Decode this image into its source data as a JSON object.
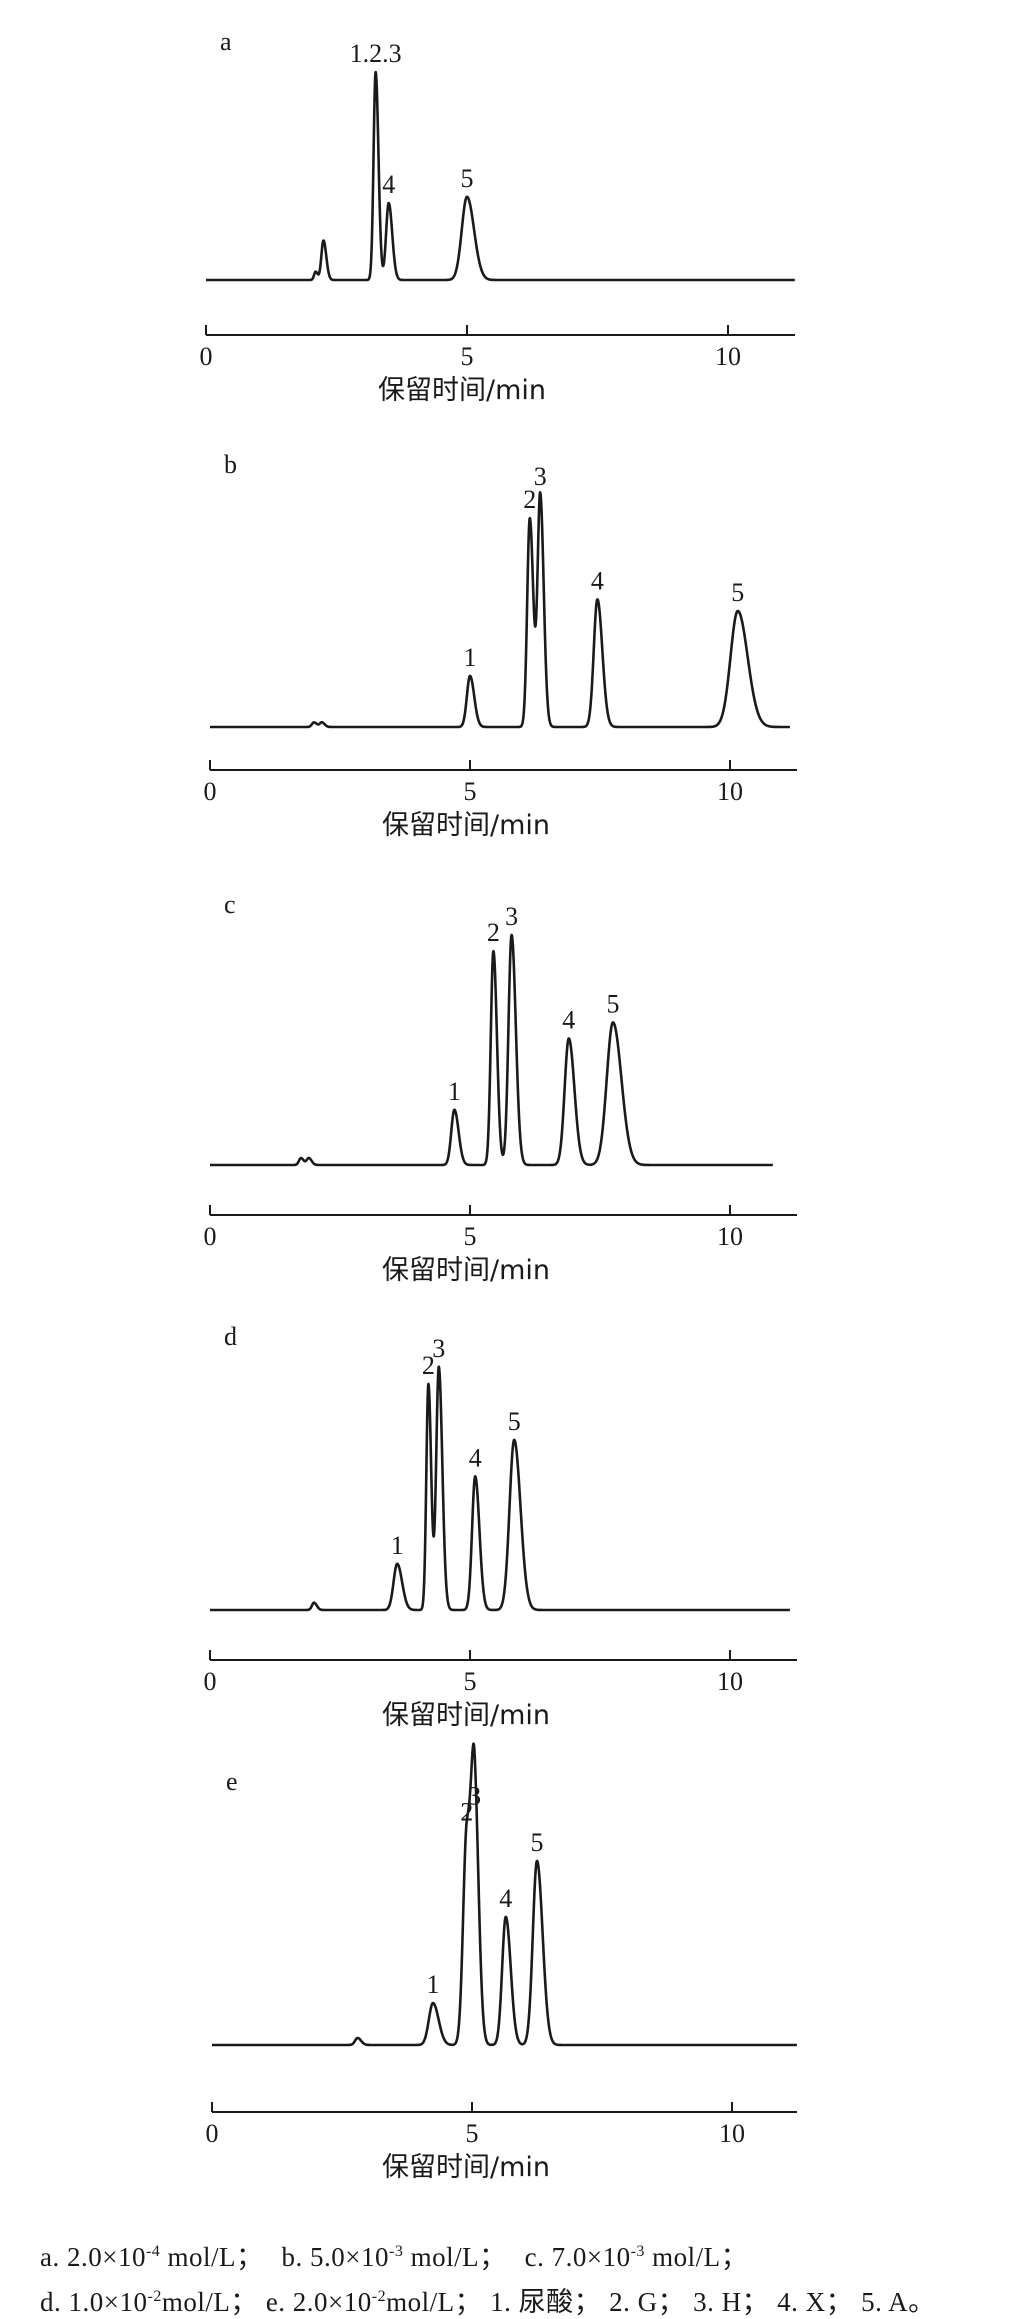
{
  "chart_data": [
    {
      "type": "line",
      "panel_label": "a",
      "xlabel": "保留时间/min",
      "xlim": [
        0,
        11.2
      ],
      "xticks": [
        0,
        5,
        10
      ],
      "grid": false,
      "peaks": [
        {
          "label": "",
          "rt": 2.1,
          "height": 0.04,
          "width": 0.03
        },
        {
          "label": "",
          "rt": 2.25,
          "height": 0.19,
          "width": 0.04
        },
        {
          "label": "1.2.3",
          "rt": 3.25,
          "height": 1.0,
          "width": 0.04
        },
        {
          "label": "4",
          "rt": 3.5,
          "height": 0.37,
          "width": 0.05
        },
        {
          "label": "5",
          "rt": 5.0,
          "height": 0.4,
          "width": 0.1
        }
      ]
    },
    {
      "type": "line",
      "panel_label": "b",
      "xlabel": "保留时间/min",
      "xlim": [
        0,
        11.2
      ],
      "xticks": [
        0,
        5,
        10
      ],
      "grid": false,
      "peaks": [
        {
          "label": "",
          "rt": 2.0,
          "height": 0.02,
          "width": 0.04
        },
        {
          "label": "",
          "rt": 2.15,
          "height": 0.02,
          "width": 0.04
        },
        {
          "label": "1",
          "rt": 5.0,
          "height": 0.22,
          "width": 0.06
        },
        {
          "label": "2",
          "rt": 6.15,
          "height": 0.9,
          "width": 0.05
        },
        {
          "label": "3",
          "rt": 6.35,
          "height": 1.0,
          "width": 0.05
        },
        {
          "label": "4",
          "rt": 7.45,
          "height": 0.55,
          "width": 0.07
        },
        {
          "label": "5",
          "rt": 10.15,
          "height": 0.5,
          "width": 0.14
        }
      ]
    },
    {
      "type": "line",
      "panel_label": "c",
      "xlabel": "保留时间/min",
      "xlim": [
        0,
        11.2
      ],
      "xticks": [
        0,
        5,
        10
      ],
      "grid": false,
      "peaks": [
        {
          "label": "",
          "rt": 1.75,
          "height": 0.03,
          "width": 0.04
        },
        {
          "label": "",
          "rt": 1.9,
          "height": 0.03,
          "width": 0.04
        },
        {
          "label": "1",
          "rt": 4.7,
          "height": 0.24,
          "width": 0.06
        },
        {
          "label": "2",
          "rt": 5.45,
          "height": 0.93,
          "width": 0.05
        },
        {
          "label": "3",
          "rt": 5.8,
          "height": 1.0,
          "width": 0.06
        },
        {
          "label": "4",
          "rt": 6.9,
          "height": 0.55,
          "width": 0.08
        },
        {
          "label": "5",
          "rt": 7.75,
          "height": 0.62,
          "width": 0.12
        }
      ]
    },
    {
      "type": "line",
      "panel_label": "d",
      "xlabel": "保留时间/min",
      "xlim": [
        0,
        11.2
      ],
      "xticks": [
        0,
        5,
        10
      ],
      "grid": false,
      "peaks": [
        {
          "label": "",
          "rt": 2.0,
          "height": 0.03,
          "width": 0.04
        },
        {
          "label": "1",
          "rt": 3.6,
          "height": 0.19,
          "width": 0.07
        },
        {
          "label": "2",
          "rt": 4.2,
          "height": 0.93,
          "width": 0.04
        },
        {
          "label": "3",
          "rt": 4.4,
          "height": 1.0,
          "width": 0.05
        },
        {
          "label": "4",
          "rt": 5.1,
          "height": 0.55,
          "width": 0.06
        },
        {
          "label": "5",
          "rt": 5.85,
          "height": 0.7,
          "width": 0.09
        }
      ]
    },
    {
      "type": "line",
      "panel_label": "e",
      "xlabel": "保留时间/min",
      "xlim": [
        0,
        11.2
      ],
      "xticks": [
        0,
        5,
        10
      ],
      "grid": false,
      "peaks": [
        {
          "label": "",
          "rt": 2.8,
          "height": 0.03,
          "width": 0.05
        },
        {
          "label": "1",
          "rt": 4.25,
          "height": 0.18,
          "width": 0.08
        },
        {
          "label": "2",
          "rt": 4.9,
          "height": 0.92,
          "width": 0.07
        },
        {
          "label": "3",
          "rt": 5.05,
          "height": 0.99,
          "width": 0.06
        },
        {
          "label": "4",
          "rt": 5.65,
          "height": 0.55,
          "width": 0.07
        },
        {
          "label": "5",
          "rt": 6.25,
          "height": 0.79,
          "width": 0.08
        }
      ]
    }
  ],
  "caption": {
    "line1": [
      {
        "pre": "a. 2.0×10",
        "sup": "-4",
        "post": " mol/L；"
      },
      {
        "pre": "b. 5.0×10",
        "sup": "-3",
        "post": " mol/L；"
      },
      {
        "pre": "c. 7.0×10",
        "sup": "-3",
        "post": " mol/L；"
      }
    ],
    "line2": [
      {
        "pre": "d. 1.0×10",
        "sup": "-2",
        "post": "mol/L；"
      },
      {
        "pre": "e. 2.0×10",
        "sup": "-2",
        "post": "mol/L；"
      },
      {
        "pre": "1. 尿酸；",
        "sup": "",
        "post": ""
      },
      {
        "pre": "2. G；",
        "sup": "",
        "post": ""
      },
      {
        "pre": "3. H；",
        "sup": "",
        "post": ""
      },
      {
        "pre": "4. X；",
        "sup": "",
        "post": ""
      },
      {
        "pre": "5. A。",
        "sup": "",
        "post": ""
      }
    ]
  }
}
